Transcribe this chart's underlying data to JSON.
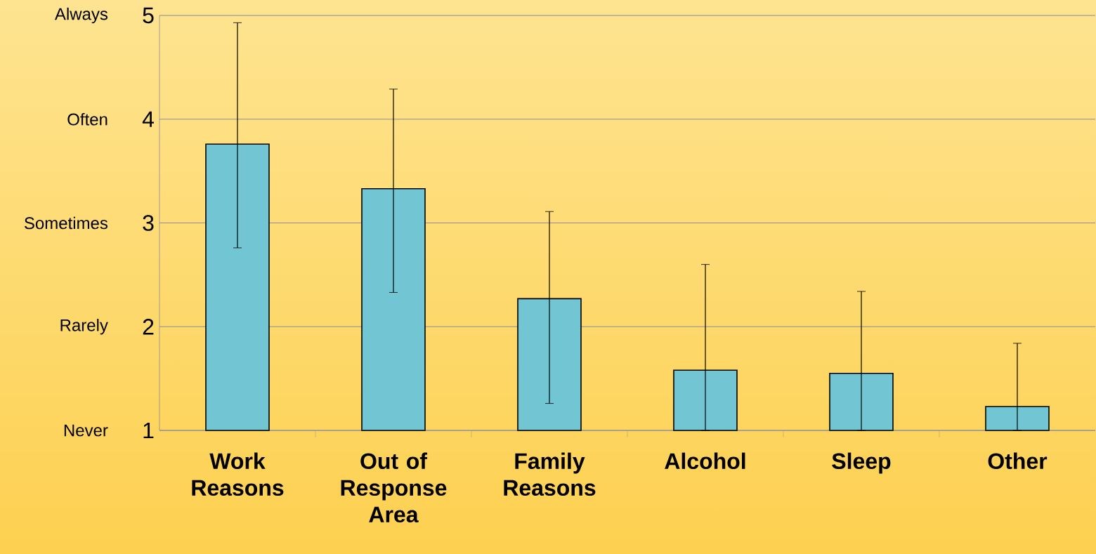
{
  "chart_data": {
    "type": "bar",
    "categories": [
      "Work Reasons",
      "Out of Response Area",
      "Family Reasons",
      "Alcohol",
      "Sleep",
      "Other"
    ],
    "values": [
      3.76,
      3.33,
      2.27,
      1.58,
      1.55,
      1.23
    ],
    "errors": [
      [
        2.76,
        4.93
      ],
      [
        2.33,
        4.29
      ],
      [
        1.26,
        3.11
      ],
      [
        1,
        2.6
      ],
      [
        1,
        2.34
      ],
      [
        1,
        1.84
      ]
    ],
    "color": "#72c5d3",
    "ylim": [
      1,
      5
    ],
    "yticks": [
      1,
      2,
      3,
      4,
      5
    ],
    "annotations": [
      "Never",
      "Rarely",
      "Sometimes",
      "Often",
      "Always"
    ],
    "grid": "y"
  }
}
